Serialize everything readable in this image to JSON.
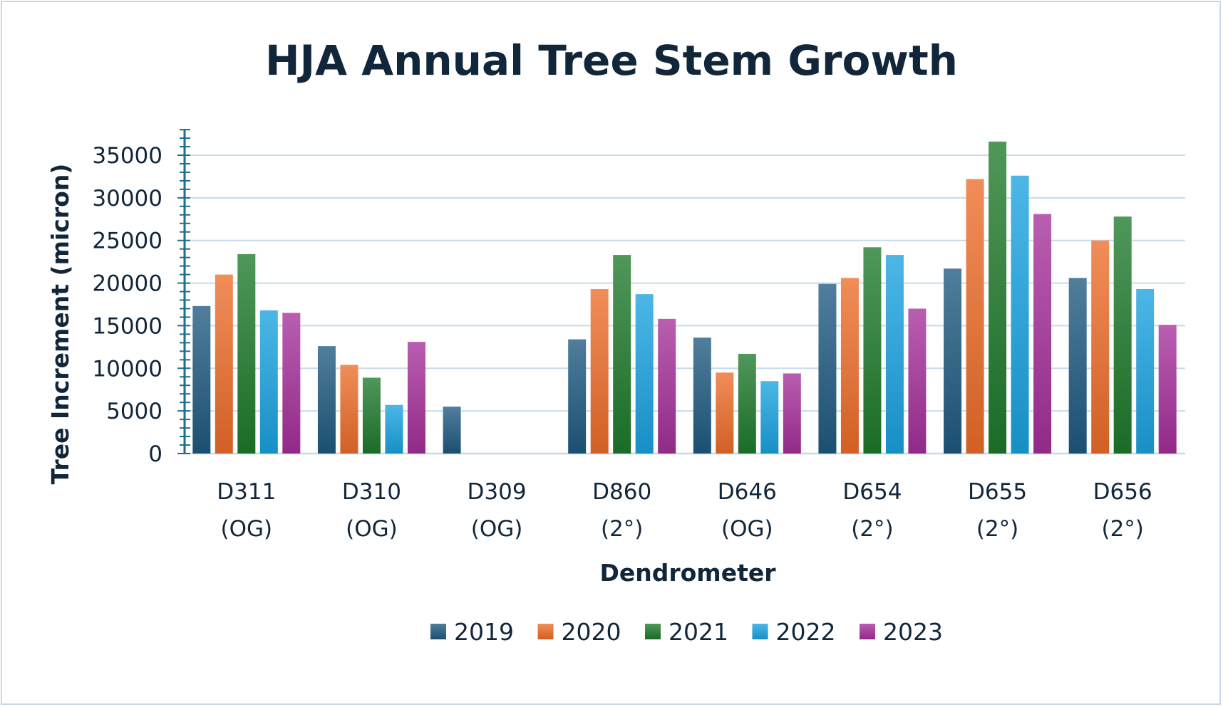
{
  "chart_data": {
    "type": "bar",
    "title": "HJA Annual Tree Stem Growth",
    "xlabel": "Dendrometer",
    "ylabel": "Tree Increment (micron)",
    "ylim": [
      0,
      38000
    ],
    "yticks": [
      0,
      5000,
      10000,
      15000,
      20000,
      25000,
      30000,
      35000
    ],
    "ytick_labels": [
      "0",
      "5000",
      "10000",
      "15000",
      "20000",
      "25000",
      "30000",
      "35000"
    ],
    "grid": true,
    "legend_position": "bottom",
    "categories": [
      {
        "line1": "D311",
        "line2": "(OG)"
      },
      {
        "line1": "D310",
        "line2": "(OG)"
      },
      {
        "line1": "D309",
        "line2": "(OG)"
      },
      {
        "line1": "D860",
        "line2": "(2°)"
      },
      {
        "line1": "D646",
        "line2": "(OG)"
      },
      {
        "line1": "D654",
        "line2": "(2°)"
      },
      {
        "line1": "D655",
        "line2": "(2°)"
      },
      {
        "line1": "D656",
        "line2": "(2°)"
      }
    ],
    "series": [
      {
        "name": "2019",
        "color": "#1f5a80",
        "values": [
          17300,
          12600,
          5500,
          13400,
          13600,
          19900,
          21700,
          20600
        ]
      },
      {
        "name": "2020",
        "color": "#ed6d2a",
        "values": [
          21000,
          10400,
          0,
          19300,
          9500,
          20600,
          32200,
          25000
        ]
      },
      {
        "name": "2021",
        "color": "#1f7a2c",
        "values": [
          23400,
          8900,
          0,
          23300,
          11700,
          24200,
          36600,
          27800
        ]
      },
      {
        "name": "2022",
        "color": "#1aa3e0",
        "values": [
          16800,
          5700,
          0,
          18700,
          8500,
          23300,
          32600,
          19300
        ]
      },
      {
        "name": "2023",
        "color": "#a5309a",
        "values": [
          16500,
          13100,
          0,
          15800,
          9400,
          17000,
          28100,
          15100
        ]
      }
    ]
  }
}
